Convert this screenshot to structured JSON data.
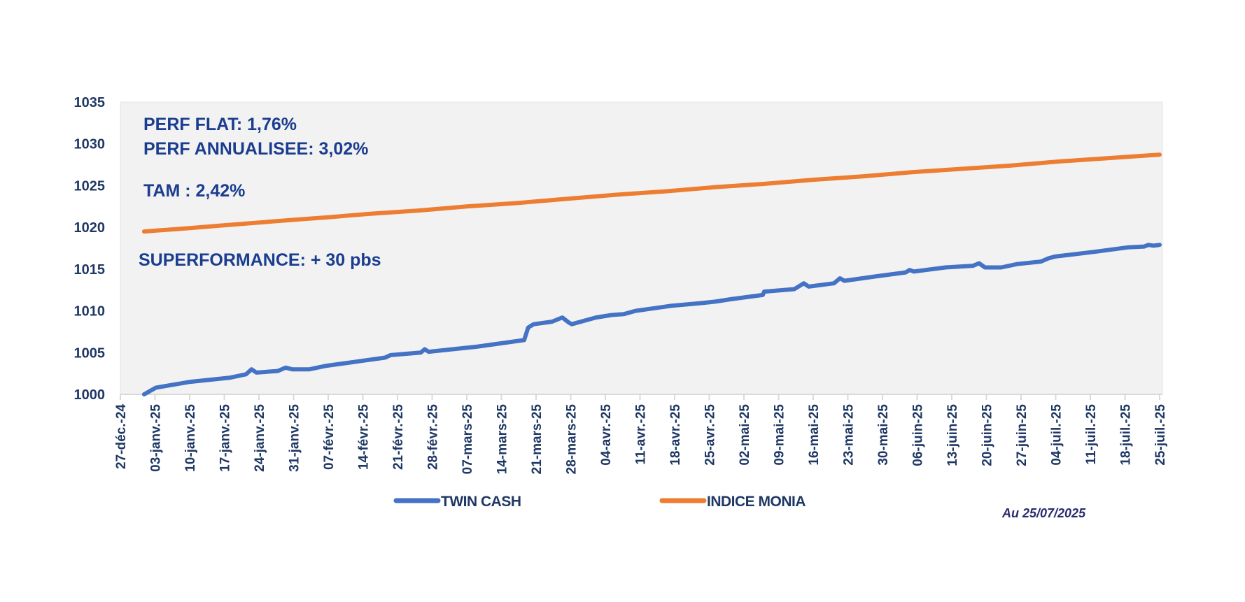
{
  "chart_data": {
    "type": "line",
    "title": "",
    "xlabel": "",
    "ylabel": "",
    "x_unit": "days since 27-déc.-24",
    "xlim": [
      0,
      210
    ],
    "ylim": [
      1000,
      1035
    ],
    "yticks": [
      1000,
      1005,
      1010,
      1015,
      1020,
      1025,
      1030,
      1035
    ],
    "xtick_labels": [
      "27-déc.-24",
      "03-janv.-25",
      "10-janv.-25",
      "17-janv.-25",
      "24-janv.-25",
      "31-janv.-25",
      "07-févr.-25",
      "14-févr.-25",
      "21-févr.-25",
      "28-févr.-25",
      "07-mars-25",
      "14-mars-25",
      "21-mars-25",
      "28-mars-25",
      "04-avr.-25",
      "11-avr.-25",
      "18-avr.-25",
      "25-avr.-25",
      "02-mai-25",
      "09-mai-25",
      "16-mai-25",
      "23-mai-25",
      "30-mai-25",
      "06-juin-25",
      "13-juin-25",
      "20-juin-25",
      "27-juin-25",
      "04-juil.-25",
      "11-juil.-25",
      "18-juil.-25",
      "25-juil.-25"
    ],
    "xtick_step_days": 7,
    "grid": false,
    "legend_position": "bottom",
    "series": [
      {
        "name": "TWIN CASH",
        "color": "#4472c4",
        "x": [
          4.8,
          7.2,
          14.1,
          22.2,
          25.4,
          26.5,
          27.5,
          31.8,
          33.4,
          34.7,
          38.2,
          41.4,
          46.3,
          53.5,
          54.6,
          60.7,
          61.5,
          62.3,
          67.1,
          72,
          76.8,
          81.6,
          82.4,
          83.5,
          87.2,
          89.3,
          90.6,
          91.2,
          96.1,
          99.3,
          101.7,
          104.1,
          108.9,
          111.3,
          117,
          120.2,
          123.4,
          129.8,
          130.1,
          136.2,
          138.1,
          139.1,
          144.2,
          145.4,
          146.3,
          152.3,
          158.7,
          159.5,
          160.3,
          166.7,
          172.3,
          173.5,
          174.7,
          178,
          181.2,
          186,
          187.6,
          188.9,
          191.6,
          197.2,
          203.6,
          206.9,
          207.7,
          208.8,
          210
        ],
        "values": [
          1000,
          1000.8,
          1001.5,
          1002.0,
          1002.4,
          1003.0,
          1002.6,
          1002.8,
          1003.2,
          1003.0,
          1003.0,
          1003.4,
          1003.8,
          1004.4,
          1004.7,
          1005.0,
          1005.4,
          1005.1,
          1005.4,
          1005.7,
          1006.1,
          1006.5,
          1008.0,
          1008.4,
          1008.7,
          1009.2,
          1008.6,
          1008.4,
          1009.2,
          1009.5,
          1009.6,
          1010.0,
          1010.4,
          1010.6,
          1010.9,
          1011.1,
          1011.4,
          1011.9,
          1012.3,
          1012.6,
          1013.3,
          1012.9,
          1013.3,
          1013.9,
          1013.6,
          1014.1,
          1014.6,
          1014.9,
          1014.7,
          1015.2,
          1015.4,
          1015.7,
          1015.2,
          1015.2,
          1015.6,
          1015.9,
          1016.3,
          1016.5,
          1016.7,
          1017.1,
          1017.6,
          1017.7,
          1017.9,
          1017.8,
          1017.9
        ]
      },
      {
        "name": "INDICE MONIA",
        "color": "#ed7d31",
        "x": [
          4.8,
          7,
          14,
          22,
          35,
          42,
          50,
          60,
          70,
          80,
          90,
          100,
          110,
          120,
          130,
          140,
          150,
          160,
          170,
          180,
          190,
          200,
          210
        ],
        "values": [
          1019.5,
          1019.6,
          1019.9,
          1020.3,
          1020.9,
          1021.2,
          1021.6,
          1022.0,
          1022.5,
          1022.9,
          1023.4,
          1023.9,
          1024.3,
          1024.8,
          1025.2,
          1025.7,
          1026.1,
          1026.6,
          1027.0,
          1027.4,
          1027.9,
          1028.3,
          1028.7
        ]
      }
    ],
    "annotations": {
      "perf_flat": "PERF FLAT: 1,76%",
      "perf_annualisee": "PERF ANNUALISEE: 3,02%",
      "tam": "TAM : 2,42%",
      "superformance": "SUPERFORMANCE: + 30 pbs"
    },
    "as_of": "Au 25/07/2025"
  }
}
